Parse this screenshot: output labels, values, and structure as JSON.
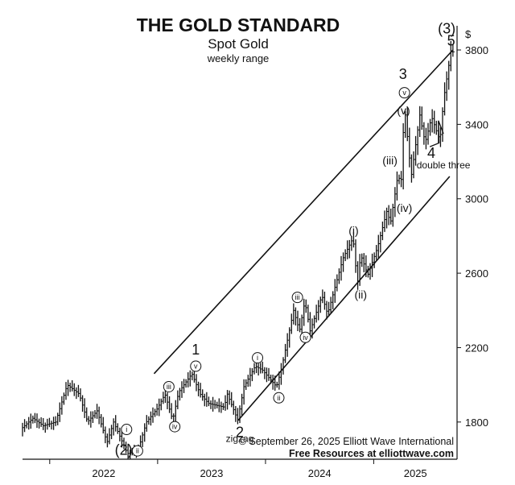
{
  "chart_data": {
    "type": "bar",
    "title": "THE GOLD STANDARD",
    "subtitle": "Spot Gold",
    "subtitle2": "weekly range",
    "ylabel": "$",
    "ylim": [
      1600,
      3930
    ],
    "y_ticks": [
      1800,
      2200,
      2600,
      3000,
      3400,
      3800
    ],
    "x_labels": [
      "2022",
      "2023",
      "2024",
      "2025"
    ],
    "x_start": "2021-10-01",
    "x_end": "2025-10-10",
    "grid": false,
    "anchors": [
      [
        "2021-10-01",
        1760
      ],
      [
        "2021-11-12",
        1820
      ],
      [
        "2021-12-17",
        1780
      ],
      [
        "2022-01-28",
        1800
      ],
      [
        "2022-03-08",
        2000
      ],
      [
        "2022-04-18",
        1950
      ],
      [
        "2022-05-16",
        1800
      ],
      [
        "2022-06-17",
        1860
      ],
      [
        "2022-07-21",
        1690
      ],
      [
        "2022-08-12",
        1800
      ],
      [
        "2022-09-28",
        1630
      ],
      [
        "2022-11-03",
        1650
      ],
      [
        "2022-12-01",
        1800
      ],
      [
        "2023-01-06",
        1870
      ],
      [
        "2023-02-02",
        1950
      ],
      [
        "2023-02-28",
        1810
      ],
      [
        "2023-03-20",
        1960
      ],
      [
        "2023-05-04",
        2060
      ],
      [
        "2023-06-01",
        1950
      ],
      [
        "2023-06-29",
        1900
      ],
      [
        "2023-08-21",
        1880
      ],
      [
        "2023-09-01",
        1950
      ],
      [
        "2023-10-06",
        1810
      ],
      [
        "2023-10-27",
        1990
      ],
      [
        "2023-12-04",
        2100
      ],
      [
        "2023-12-28",
        2080
      ],
      [
        "2024-02-14",
        1990
      ],
      [
        "2024-03-01",
        2080
      ],
      [
        "2024-04-12",
        2400
      ],
      [
        "2024-05-02",
        2290
      ],
      [
        "2024-05-20",
        2450
      ],
      [
        "2024-06-07",
        2290
      ],
      [
        "2024-07-17",
        2480
      ],
      [
        "2024-08-05",
        2380
      ],
      [
        "2024-09-26",
        2680
      ],
      [
        "2024-10-30",
        2790
      ],
      [
        "2024-11-14",
        2540
      ],
      [
        "2024-11-25",
        2700
      ],
      [
        "2024-12-19",
        2590
      ],
      [
        "2025-01-21",
        2740
      ],
      [
        "2025-02-24",
        2950
      ],
      [
        "2025-03-04",
        2850
      ],
      [
        "2025-04-03",
        3160
      ],
      [
        "2025-04-07",
        2960
      ],
      [
        "2025-04-22",
        3500
      ],
      [
        "2025-05-15",
        3120
      ],
      [
        "2025-06-13",
        3450
      ],
      [
        "2025-07-01",
        3300
      ],
      [
        "2025-07-23",
        3440
      ],
      [
        "2025-08-20",
        3310
      ],
      [
        "2025-09-02",
        3540
      ],
      [
        "2025-09-26",
        3790
      ]
    ],
    "channel_lines": [
      {
        "from": [
          "2022-12-20",
          2060
        ],
        "to": [
          "2025-09-26",
          3800
        ]
      },
      {
        "from": [
          "2023-10-01",
          1810
        ],
        "to": [
          "2025-09-15",
          3120
        ]
      }
    ],
    "wave_labels": [
      {
        "text": "(3)",
        "date": "2025-09-05",
        "price": 3915,
        "style": "big"
      },
      {
        "text": "5",
        "date": "2025-09-20",
        "price": 3850,
        "style": "big"
      },
      {
        "text": "3",
        "date": "2025-04-10",
        "price": 3670,
        "style": "big"
      },
      {
        "text": "v",
        "date": "2025-04-15",
        "price": 3570,
        "style": "circle"
      },
      {
        "text": "(v)",
        "date": "2025-04-12",
        "price": 3480,
        "style": "small"
      },
      {
        "text": "(iii)",
        "date": "2025-02-25",
        "price": 3210,
        "style": "small"
      },
      {
        "text": "(iv)",
        "date": "2025-04-15",
        "price": 2955,
        "style": "small"
      },
      {
        "text": "(i)",
        "date": "2024-10-25",
        "price": 2835,
        "style": "small"
      },
      {
        "text": "(ii)",
        "date": "2024-11-18",
        "price": 2490,
        "style": "small"
      },
      {
        "text": "iii",
        "date": "2024-04-18",
        "price": 2470,
        "style": "circle"
      },
      {
        "text": "iv",
        "date": "2024-05-15",
        "price": 2255,
        "style": "circle"
      },
      {
        "text": "4",
        "date": "2025-07-15",
        "price": 3245,
        "style": "big"
      },
      {
        "text": "1",
        "date": "2023-05-10",
        "price": 2190,
        "style": "big"
      },
      {
        "text": "v",
        "date": "2023-05-10",
        "price": 2100,
        "style": "circle"
      },
      {
        "text": "i",
        "date": "2023-12-05",
        "price": 2145,
        "style": "circle"
      },
      {
        "text": "2",
        "date": "2023-10-06",
        "price": 1745,
        "style": "big"
      },
      {
        "text": "ii",
        "date": "2024-02-15",
        "price": 1930,
        "style": "circle"
      },
      {
        "text": "iii",
        "date": "2023-02-08",
        "price": 1990,
        "style": "circle"
      },
      {
        "text": "iv",
        "date": "2023-02-28",
        "price": 1775,
        "style": "circle"
      },
      {
        "text": "i",
        "date": "2022-09-18",
        "price": 1760,
        "style": "circle"
      },
      {
        "text": "(2)",
        "date": "2022-09-08",
        "price": 1650,
        "style": "big"
      },
      {
        "text": "ii",
        "date": "2022-10-25",
        "price": 1645,
        "style": "circle"
      }
    ],
    "annotations": [
      {
        "text": "zigzag",
        "date": "2023-10-06",
        "price": 1710
      },
      {
        "text": "double three",
        "date": "2025-08-25",
        "price": 3180
      }
    ],
    "credit_line1": "© September 26, 2025  Elliott Wave International",
    "credit_line2": "Free Resources at elliottwave.com"
  }
}
